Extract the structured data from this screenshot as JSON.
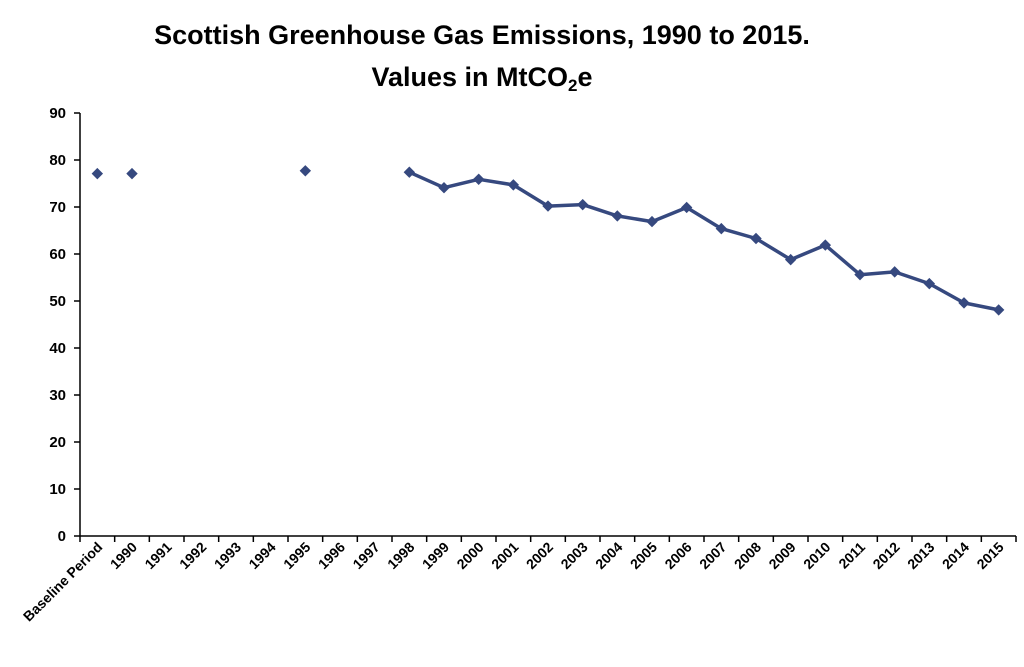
{
  "chart_data": {
    "type": "line",
    "title_line1": "Scottish Greenhouse Gas Emissions, 1990 to 2015.",
    "title_line2_prefix": "Values in MtCO",
    "title_line2_sub": "2",
    "title_line2_suffix": "e",
    "xlabel": "",
    "ylabel": "",
    "ylim": [
      0,
      90
    ],
    "yticks": [
      0,
      10,
      20,
      30,
      40,
      50,
      60,
      70,
      80,
      90
    ],
    "categories": [
      "Baseline Period",
      "1990",
      "1991",
      "1992",
      "1993",
      "1994",
      "1995",
      "1996",
      "1997",
      "1998",
      "1999",
      "2000",
      "2001",
      "2002",
      "2003",
      "2004",
      "2005",
      "2006",
      "2007",
      "2008",
      "2009",
      "2010",
      "2011",
      "2012",
      "2013",
      "2014",
      "2015"
    ],
    "values": [
      77.1,
      77.1,
      null,
      null,
      null,
      null,
      77.7,
      null,
      null,
      77.4,
      74.1,
      75.9,
      74.7,
      70.2,
      70.5,
      68.1,
      66.9,
      69.9,
      65.4,
      63.3,
      58.8,
      61.9,
      55.6,
      56.2,
      53.7,
      49.6,
      48.1
    ],
    "line_start_category": "1998",
    "series_color": "#36497f",
    "grid": false
  }
}
